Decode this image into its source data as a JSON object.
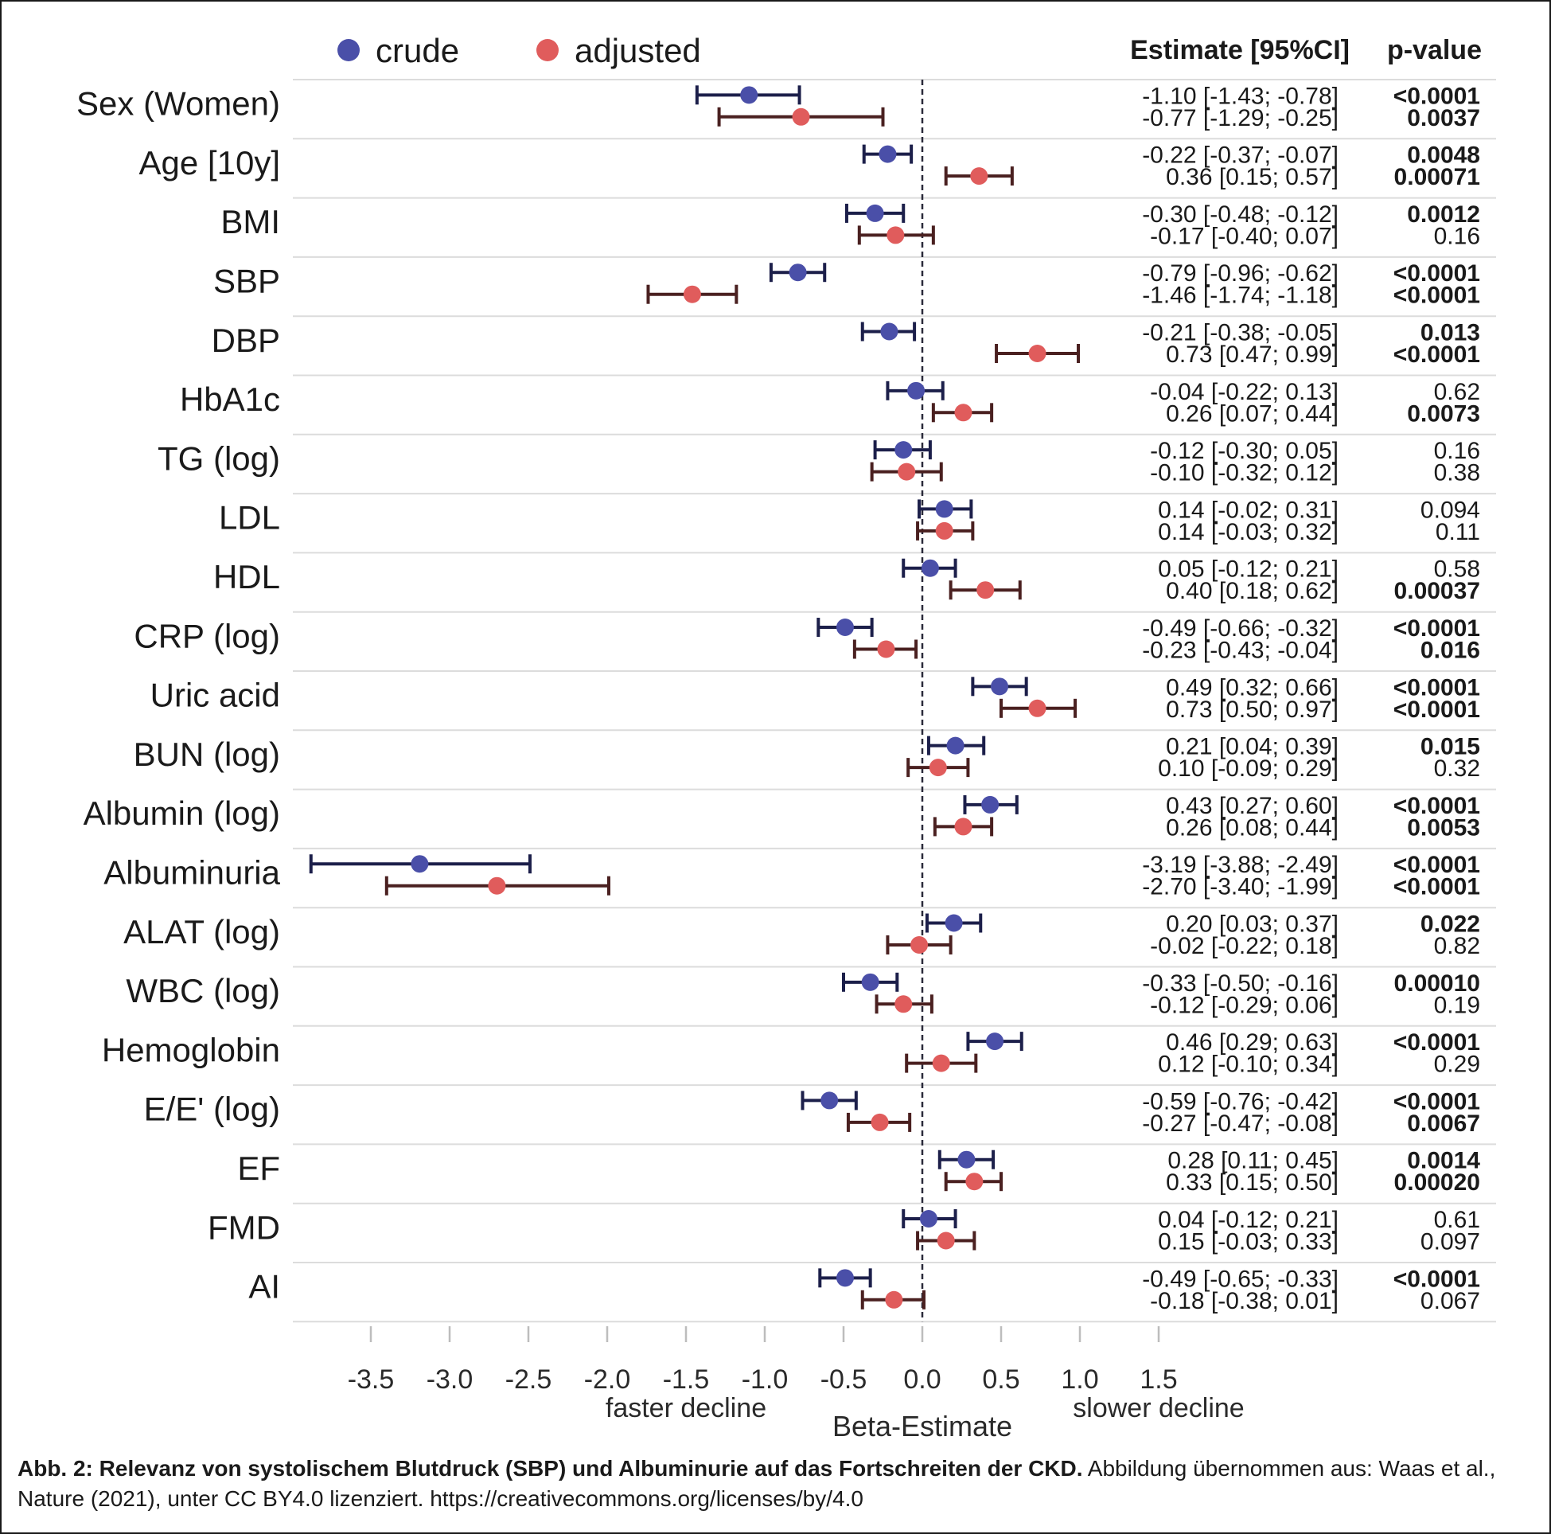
{
  "chart_data": {
    "type": "forest",
    "legend": [
      {
        "name": "crude",
        "color": "#4a4fa8"
      },
      {
        "name": "adjusted",
        "color": "#e05c5c"
      }
    ],
    "legend_position": "top-left",
    "column_headers": {
      "estimate": "Estimate [95%CI]",
      "pvalue": "p-value"
    },
    "xlabel": "Beta-Estimate",
    "x_left_annotation": "faster decline",
    "x_right_annotation": "slower decline",
    "xticks": [
      "-3.5",
      "-3.0",
      "-2.5",
      "-2.0",
      "-1.5",
      "-1.0",
      "-0.5",
      "0.0",
      "0.5",
      "1.0",
      "1.5"
    ],
    "xlim": [
      -3.9,
      3.7
    ],
    "reference_line": 0,
    "grid": false,
    "rows": [
      {
        "label": "Sex (Women)",
        "crude": {
          "est": -1.1,
          "lo": -1.43,
          "hi": -0.78,
          "text": "-1.10 [-1.43; -0.78]",
          "p": "<0.0001",
          "bold": true
        },
        "adjusted": {
          "est": -0.77,
          "lo": -1.29,
          "hi": -0.25,
          "text": "-0.77 [-1.29; -0.25]",
          "p": "0.0037",
          "bold": true
        }
      },
      {
        "label": "Age [10y]",
        "crude": {
          "est": -0.22,
          "lo": -0.37,
          "hi": -0.07,
          "text": "-0.22 [-0.37; -0.07]",
          "p": "0.0048",
          "bold": true
        },
        "adjusted": {
          "est": 0.36,
          "lo": 0.15,
          "hi": 0.57,
          "text": "0.36 [0.15; 0.57]",
          "p": "0.00071",
          "bold": true
        }
      },
      {
        "label": "BMI",
        "crude": {
          "est": -0.3,
          "lo": -0.48,
          "hi": -0.12,
          "text": "-0.30 [-0.48; -0.12]",
          "p": "0.0012",
          "bold": true
        },
        "adjusted": {
          "est": -0.17,
          "lo": -0.4,
          "hi": 0.07,
          "text": "-0.17 [-0.40; 0.07]",
          "p": "0.16",
          "bold": false
        }
      },
      {
        "label": "SBP",
        "crude": {
          "est": -0.79,
          "lo": -0.96,
          "hi": -0.62,
          "text": "-0.79 [-0.96; -0.62]",
          "p": "<0.0001",
          "bold": true
        },
        "adjusted": {
          "est": -1.46,
          "lo": -1.74,
          "hi": -1.18,
          "text": "-1.46 [-1.74; -1.18]",
          "p": "<0.0001",
          "bold": true
        }
      },
      {
        "label": "DBP",
        "crude": {
          "est": -0.21,
          "lo": -0.38,
          "hi": -0.05,
          "text": "-0.21 [-0.38; -0.05]",
          "p": "0.013",
          "bold": true
        },
        "adjusted": {
          "est": 0.73,
          "lo": 0.47,
          "hi": 0.99,
          "text": "0.73 [0.47; 0.99]",
          "p": "<0.0001",
          "bold": true
        }
      },
      {
        "label": "HbA1c",
        "crude": {
          "est": -0.04,
          "lo": -0.22,
          "hi": 0.13,
          "text": "-0.04 [-0.22; 0.13]",
          "p": "0.62",
          "bold": false
        },
        "adjusted": {
          "est": 0.26,
          "lo": 0.07,
          "hi": 0.44,
          "text": "0.26 [0.07; 0.44]",
          "p": "0.0073",
          "bold": true
        }
      },
      {
        "label": "TG (log)",
        "crude": {
          "est": -0.12,
          "lo": -0.3,
          "hi": 0.05,
          "text": "-0.12 [-0.30; 0.05]",
          "p": "0.16",
          "bold": false
        },
        "adjusted": {
          "est": -0.1,
          "lo": -0.32,
          "hi": 0.12,
          "text": "-0.10 [-0.32; 0.12]",
          "p": "0.38",
          "bold": false
        }
      },
      {
        "label": "LDL",
        "crude": {
          "est": 0.14,
          "lo": -0.02,
          "hi": 0.31,
          "text": "0.14 [-0.02; 0.31]",
          "p": "0.094",
          "bold": false
        },
        "adjusted": {
          "est": 0.14,
          "lo": -0.03,
          "hi": 0.32,
          "text": "0.14 [-0.03; 0.32]",
          "p": "0.11",
          "bold": false
        }
      },
      {
        "label": "HDL",
        "crude": {
          "est": 0.05,
          "lo": -0.12,
          "hi": 0.21,
          "text": "0.05 [-0.12; 0.21]",
          "p": "0.58",
          "bold": false
        },
        "adjusted": {
          "est": 0.4,
          "lo": 0.18,
          "hi": 0.62,
          "text": "0.40 [0.18; 0.62]",
          "p": "0.00037",
          "bold": true
        }
      },
      {
        "label": "CRP (log)",
        "crude": {
          "est": -0.49,
          "lo": -0.66,
          "hi": -0.32,
          "text": "-0.49 [-0.66; -0.32]",
          "p": "<0.0001",
          "bold": true
        },
        "adjusted": {
          "est": -0.23,
          "lo": -0.43,
          "hi": -0.04,
          "text": "-0.23 [-0.43; -0.04]",
          "p": "0.016",
          "bold": true
        }
      },
      {
        "label": "Uric acid",
        "crude": {
          "est": 0.49,
          "lo": 0.32,
          "hi": 0.66,
          "text": "0.49 [0.32; 0.66]",
          "p": "<0.0001",
          "bold": true
        },
        "adjusted": {
          "est": 0.73,
          "lo": 0.5,
          "hi": 0.97,
          "text": "0.73 [0.50; 0.97]",
          "p": "<0.0001",
          "bold": true
        }
      },
      {
        "label": "BUN (log)",
        "crude": {
          "est": 0.21,
          "lo": 0.04,
          "hi": 0.39,
          "text": "0.21 [0.04; 0.39]",
          "p": "0.015",
          "bold": true
        },
        "adjusted": {
          "est": 0.1,
          "lo": -0.09,
          "hi": 0.29,
          "text": "0.10 [-0.09; 0.29]",
          "p": "0.32",
          "bold": false
        }
      },
      {
        "label": "Albumin (log)",
        "crude": {
          "est": 0.43,
          "lo": 0.27,
          "hi": 0.6,
          "text": "0.43 [0.27; 0.60]",
          "p": "<0.0001",
          "bold": true
        },
        "adjusted": {
          "est": 0.26,
          "lo": 0.08,
          "hi": 0.44,
          "text": "0.26 [0.08; 0.44]",
          "p": "0.0053",
          "bold": true
        }
      },
      {
        "label": "Albuminuria",
        "crude": {
          "est": -3.19,
          "lo": -3.88,
          "hi": -2.49,
          "text": "-3.19 [-3.88; -2.49]",
          "p": "<0.0001",
          "bold": true
        },
        "adjusted": {
          "est": -2.7,
          "lo": -3.4,
          "hi": -1.99,
          "text": "-2.70 [-3.40; -1.99]",
          "p": "<0.0001",
          "bold": true
        }
      },
      {
        "label": "ALAT (log)",
        "crude": {
          "est": 0.2,
          "lo": 0.03,
          "hi": 0.37,
          "text": "0.20 [0.03; 0.37]",
          "p": "0.022",
          "bold": true
        },
        "adjusted": {
          "est": -0.02,
          "lo": -0.22,
          "hi": 0.18,
          "text": "-0.02 [-0.22; 0.18]",
          "p": "0.82",
          "bold": false
        }
      },
      {
        "label": "WBC (log)",
        "crude": {
          "est": -0.33,
          "lo": -0.5,
          "hi": -0.16,
          "text": "-0.33 [-0.50; -0.16]",
          "p": "0.00010",
          "bold": true
        },
        "adjusted": {
          "est": -0.12,
          "lo": -0.29,
          "hi": 0.06,
          "text": "-0.12 [-0.29; 0.06]",
          "p": "0.19",
          "bold": false
        }
      },
      {
        "label": "Hemoglobin",
        "crude": {
          "est": 0.46,
          "lo": 0.29,
          "hi": 0.63,
          "text": "0.46 [0.29; 0.63]",
          "p": "<0.0001",
          "bold": true
        },
        "adjusted": {
          "est": 0.12,
          "lo": -0.1,
          "hi": 0.34,
          "text": "0.12 [-0.10; 0.34]",
          "p": "0.29",
          "bold": false
        }
      },
      {
        "label": "E/E' (log)",
        "crude": {
          "est": -0.59,
          "lo": -0.76,
          "hi": -0.42,
          "text": "-0.59 [-0.76; -0.42]",
          "p": "<0.0001",
          "bold": true
        },
        "adjusted": {
          "est": -0.27,
          "lo": -0.47,
          "hi": -0.08,
          "text": "-0.27 [-0.47; -0.08]",
          "p": "0.0067",
          "bold": true
        }
      },
      {
        "label": "EF",
        "crude": {
          "est": 0.28,
          "lo": 0.11,
          "hi": 0.45,
          "text": "0.28 [0.11; 0.45]",
          "p": "0.0014",
          "bold": true
        },
        "adjusted": {
          "est": 0.33,
          "lo": 0.15,
          "hi": 0.5,
          "text": "0.33 [0.15; 0.50]",
          "p": "0.00020",
          "bold": true
        }
      },
      {
        "label": "FMD",
        "crude": {
          "est": 0.04,
          "lo": -0.12,
          "hi": 0.21,
          "text": "0.04 [-0.12; 0.21]",
          "p": "0.61",
          "bold": false
        },
        "adjusted": {
          "est": 0.15,
          "lo": -0.03,
          "hi": 0.33,
          "text": "0.15 [-0.03; 0.33]",
          "p": "0.097",
          "bold": false
        }
      },
      {
        "label": "AI",
        "crude": {
          "est": -0.49,
          "lo": -0.65,
          "hi": -0.33,
          "text": "-0.49 [-0.65; -0.33]",
          "p": "<0.0001",
          "bold": true
        },
        "adjusted": {
          "est": -0.18,
          "lo": -0.38,
          "hi": 0.01,
          "text": "-0.18 [-0.38; 0.01]",
          "p": "0.067",
          "bold": false
        }
      }
    ]
  },
  "caption": {
    "bold": "Abb. 2: Relevanz von systolischem Blutdruck (SBP) und Albuminurie auf das Fortschreiten der CKD.",
    "rest": " Abbildung übernommen aus: Waas et al., Nature (2021), unter CC BY4.0 lizenziert. https://creativecommons.org/licenses/by/4.0"
  }
}
